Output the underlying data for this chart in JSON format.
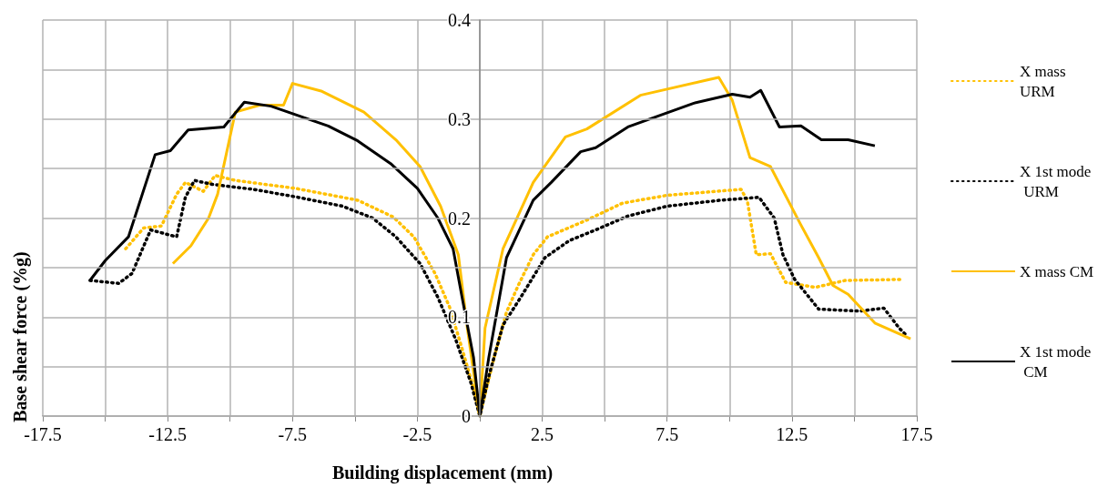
{
  "chart_data": {
    "type": "line",
    "xlabel": "Building displacement (mm)",
    "ylabel": "Base shear force (%g)",
    "xlim": [
      -17.5,
      17.5
    ],
    "xticks": [
      -17.5,
      {
        "value": -15,
        "label": null
      },
      -12.5,
      {
        "value": -10,
        "label": null
      },
      -7.5,
      {
        "value": -5,
        "label": null
      },
      -2.5,
      {
        "value": 0,
        "label": null
      },
      2.5,
      {
        "value": 5,
        "label": null
      },
      7.5,
      {
        "value": 10,
        "label": null
      },
      12.5,
      {
        "value": 15,
        "label": null
      },
      17.5
    ],
    "ylim": [
      0,
      0.4
    ],
    "yticks": [
      0,
      {
        "value": 0.05,
        "label": null
      },
      0.1,
      {
        "value": 0.15,
        "label": null
      },
      0.2,
      {
        "value": 0.25,
        "label": null
      },
      0.3,
      {
        "value": 0.35,
        "label": null
      },
      0.4
    ],
    "grid": true,
    "legend": "right",
    "marker": "none",
    "series": [
      {
        "name": "X mass URM",
        "color": "#ffc000",
        "line_style": "dotted",
        "x": [
          -14.18,
          -13.46,
          -12.75,
          -12.14,
          -11.79,
          -11.07,
          -10.6,
          -9.79,
          -7.39,
          -4.89,
          -3.46,
          -2.64,
          -1.79,
          -1.21,
          -0.71,
          -0.25,
          0,
          0.57,
          1.07,
          1.54,
          2.14,
          2.71,
          4.29,
          5.71,
          7.5,
          10.46,
          10.71,
          11.07,
          11.64,
          12.25,
          13.43,
          14.64,
          16.89
        ],
        "values": [
          0.169,
          0.19,
          0.192,
          0.224,
          0.236,
          0.227,
          0.243,
          0.238,
          0.23,
          0.218,
          0.201,
          0.181,
          0.144,
          0.11,
          0.068,
          0.028,
          0,
          0.059,
          0.105,
          0.132,
          0.163,
          0.181,
          0.198,
          0.215,
          0.223,
          0.229,
          0.218,
          0.163,
          0.164,
          0.135,
          0.13,
          0.137,
          0.138
        ]
      },
      {
        "name": "X 1st mode URM",
        "color": "#000000",
        "line_style": "dotted",
        "x": [
          -15.61,
          -14.46,
          -13.93,
          -13.18,
          -12.14,
          -11.79,
          -11.43,
          -10.71,
          -9.07,
          -7.29,
          -5.5,
          -4.29,
          -3.36,
          -2.39,
          -1.68,
          -0.96,
          -0.36,
          0,
          0.36,
          0.93,
          1.64,
          2.61,
          3.57,
          4.64,
          5.93,
          7.5,
          9.64,
          11.18,
          11.79,
          12.14,
          12.61,
          13.57,
          15.21,
          16.18,
          16.79,
          17.14
        ],
        "values": [
          0.137,
          0.134,
          0.144,
          0.188,
          0.181,
          0.221,
          0.238,
          0.234,
          0.229,
          0.221,
          0.212,
          0.2,
          0.181,
          0.154,
          0.12,
          0.077,
          0.034,
          0,
          0.04,
          0.092,
          0.12,
          0.16,
          0.177,
          0.188,
          0.202,
          0.212,
          0.218,
          0.221,
          0.2,
          0.163,
          0.138,
          0.108,
          0.106,
          0.109,
          0.089,
          0.08
        ]
      },
      {
        "name": "X mass CM",
        "color": "#ffc000",
        "line_style": "solid",
        "x": [
          -12.29,
          -11.57,
          -10.86,
          -10.5,
          -9.79,
          -8.82,
          -7.86,
          -7.5,
          -6.32,
          -4.64,
          -3.36,
          -2.39,
          -1.57,
          -0.86,
          -0.5,
          0,
          0.21,
          0.93,
          2.14,
          3.43,
          4.29,
          6.43,
          9.04,
          9.57,
          10.11,
          10.82,
          11.64,
          12.86,
          13.57,
          14.14,
          14.75,
          15.82,
          17.25
        ],
        "values": [
          0.154,
          0.172,
          0.2,
          0.224,
          0.307,
          0.314,
          0.314,
          0.336,
          0.328,
          0.307,
          0.279,
          0.252,
          0.212,
          0.163,
          0.089,
          0,
          0.089,
          0.169,
          0.236,
          0.282,
          0.29,
          0.324,
          0.339,
          0.342,
          0.319,
          0.261,
          0.252,
          0.193,
          0.16,
          0.132,
          0.123,
          0.094,
          0.078
        ]
      },
      {
        "name": "X 1st mode CM",
        "color": "#000000",
        "line_style": "solid",
        "x": [
          -15.61,
          -15.0,
          -14.07,
          -13.0,
          -12.39,
          -11.68,
          -10.25,
          -9.43,
          -8.36,
          -6.07,
          -4.89,
          -3.57,
          -2.5,
          -1.68,
          -1.07,
          -0.71,
          -0.25,
          0,
          0.36,
          1.07,
          2.14,
          2.86,
          4.04,
          4.64,
          5.93,
          8.57,
          10.11,
          10.82,
          11.25,
          12.0,
          12.86,
          13.68,
          14.75,
          15.82
        ],
        "values": [
          0.137,
          0.157,
          0.181,
          0.264,
          0.268,
          0.289,
          0.292,
          0.317,
          0.313,
          0.293,
          0.278,
          0.255,
          0.23,
          0.2,
          0.169,
          0.12,
          0.059,
          0,
          0.059,
          0.16,
          0.218,
          0.236,
          0.267,
          0.271,
          0.292,
          0.316,
          0.325,
          0.322,
          0.329,
          0.292,
          0.293,
          0.279,
          0.279,
          0.273
        ]
      }
    ]
  }
}
